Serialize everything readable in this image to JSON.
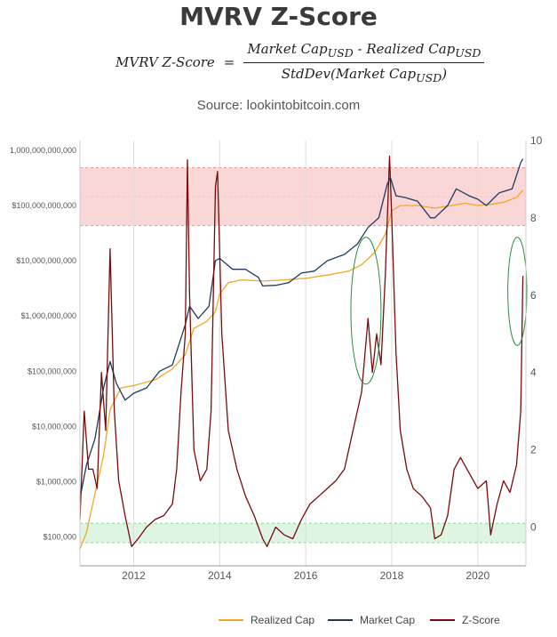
{
  "header": {
    "title": "MVRV Z-Score",
    "formula_lhs": "MVRV Z-Score",
    "formula_eq": "=",
    "formula_num": "Market Cap",
    "formula_num_sub": "USD",
    "formula_minus": " - Realized Cap",
    "formula_num_sub2": "USD",
    "formula_den": "StdDev(Market Cap",
    "formula_den_sub": "USD",
    "formula_den_close": ")",
    "source": "Source: lookintobitcoin.com"
  },
  "colors": {
    "realized_cap": "#f5a623",
    "market_cap": "#1f3a60",
    "z_score": "#7b0a0a",
    "red_band": "#f9d7d7",
    "green_band": "#dff5e4",
    "ellipse": "#2e8b3e"
  },
  "chart_data": {
    "type": "line",
    "title": "MVRV Z-Score",
    "xlabel": "",
    "ylabel": "",
    "y_scale": "log",
    "ylim": [
      30000,
      1500000000000
    ],
    "y2lim": [
      -1,
      10
    ],
    "xlim": [
      2010.75,
      2021.12
    ],
    "x_ticks": [
      "2012",
      "2014",
      "2016",
      "2018",
      "2020"
    ],
    "y_ticks": [
      "$100,000",
      "$1,000,000",
      "$10,000,000",
      "$100,000,000",
      "$1,000,000,000",
      "$10,000,000,000",
      "$100,000,000,000",
      "1,000,000,000,000"
    ],
    "y2_ticks": [
      "0",
      "2",
      "4",
      "6",
      "8",
      "10"
    ],
    "bands": [
      {
        "name": "red",
        "axis": "y2",
        "from": 7.8,
        "to": 9.3
      },
      {
        "name": "green",
        "axis": "y2",
        "from": -0.4,
        "to": 0.1
      }
    ],
    "grid": "vertical",
    "legend_position": "bottom",
    "series": [
      {
        "name": "Realized Cap",
        "axis": "y",
        "x": [
          2010.75,
          2010.9,
          2011.1,
          2011.3,
          2011.45,
          2011.7,
          2012.0,
          2012.5,
          2012.9,
          2013.2,
          2013.4,
          2013.7,
          2013.9,
          2014.0,
          2014.2,
          2014.5,
          2015.0,
          2015.5,
          2016.0,
          2016.5,
          2017.0,
          2017.3,
          2017.6,
          2017.85,
          2018.0,
          2018.2,
          2018.6,
          2019.0,
          2019.4,
          2019.7,
          2020.0,
          2020.3,
          2020.6,
          2020.9,
          2021.05
        ],
        "y": [
          60000,
          120000,
          600000,
          3000000,
          20000000,
          50000000,
          55000000,
          70000000,
          110000000,
          200000000,
          600000000,
          800000000,
          1200000000,
          2500000000,
          4000000000,
          4500000000,
          4300000000,
          4500000000,
          4800000000,
          5500000000,
          6500000000,
          8500000000,
          14000000000,
          30000000000,
          80000000000,
          100000000000,
          100000000000,
          90000000000,
          100000000000,
          110000000000,
          100000000000,
          105000000000,
          115000000000,
          140000000000,
          190000000000
        ]
      },
      {
        "name": "Market Cap",
        "axis": "y",
        "x": [
          2010.75,
          2010.9,
          2011.1,
          2011.3,
          2011.45,
          2011.6,
          2011.8,
          2012.0,
          2012.3,
          2012.6,
          2012.9,
          2013.2,
          2013.3,
          2013.5,
          2013.75,
          2013.9,
          2014.0,
          2014.3,
          2014.6,
          2014.9,
          2015.0,
          2015.3,
          2015.6,
          2015.9,
          2016.2,
          2016.5,
          2016.9,
          2017.2,
          2017.45,
          2017.7,
          2017.9,
          2017.97,
          2018.1,
          2018.3,
          2018.6,
          2018.9,
          2019.0,
          2019.3,
          2019.5,
          2019.8,
          2020.0,
          2020.2,
          2020.5,
          2020.8,
          2021.0,
          2021.05
        ],
        "y": [
          500000,
          2000000,
          6000000,
          50000000,
          150000000,
          60000000,
          30000000,
          40000000,
          50000000,
          100000000,
          130000000,
          700000000,
          1500000000,
          900000000,
          1500000000,
          10000000000,
          11000000000,
          7000000000,
          7000000000,
          5000000000,
          3500000000,
          3600000000,
          4000000000,
          6000000000,
          6500000000,
          10000000000,
          13000000000,
          20000000000,
          40000000000,
          60000000000,
          250000000000,
          320000000000,
          150000000000,
          140000000000,
          120000000000,
          60000000000,
          60000000000,
          100000000000,
          200000000000,
          150000000000,
          130000000000,
          100000000000,
          170000000000,
          200000000000,
          600000000000,
          700000000000
        ]
      },
      {
        "name": "Z-Score",
        "axis": "y2",
        "x": [
          2010.75,
          2010.85,
          2010.95,
          2011.05,
          2011.15,
          2011.25,
          2011.35,
          2011.45,
          2011.55,
          2011.65,
          2011.8,
          2011.95,
          2012.1,
          2012.3,
          2012.5,
          2012.7,
          2012.9,
          2013.0,
          2013.1,
          2013.2,
          2013.25,
          2013.3,
          2013.4,
          2013.55,
          2013.7,
          2013.8,
          2013.9,
          2013.95,
          2014.05,
          2014.2,
          2014.4,
          2014.6,
          2014.8,
          2015.0,
          2015.1,
          2015.3,
          2015.5,
          2015.7,
          2015.9,
          2016.1,
          2016.3,
          2016.5,
          2016.7,
          2016.9,
          2017.1,
          2017.3,
          2017.45,
          2017.55,
          2017.65,
          2017.75,
          2017.85,
          2017.95,
          2018.0,
          2018.1,
          2018.2,
          2018.35,
          2018.5,
          2018.7,
          2018.9,
          2019.0,
          2019.15,
          2019.3,
          2019.45,
          2019.6,
          2019.8,
          2020.0,
          2020.2,
          2020.3,
          2020.45,
          2020.6,
          2020.75,
          2020.9,
          2021.0,
          2021.05
        ],
        "y": [
          0.2,
          3.0,
          1.5,
          1.5,
          1.0,
          4.0,
          2.5,
          7.2,
          3.0,
          1.2,
          0.3,
          -0.5,
          -0.3,
          0.0,
          0.2,
          0.3,
          0.6,
          1.5,
          3.5,
          5.0,
          9.5,
          6.0,
          2.0,
          1.2,
          1.5,
          3.0,
          8.8,
          9.2,
          5.0,
          2.5,
          1.5,
          0.8,
          0.3,
          -0.3,
          -0.5,
          0.0,
          -0.2,
          -0.3,
          0.2,
          0.6,
          0.8,
          1.0,
          1.2,
          1.5,
          2.5,
          3.5,
          5.4,
          4.0,
          5.0,
          4.2,
          6.5,
          9.6,
          8.0,
          4.5,
          2.5,
          1.5,
          1.0,
          0.8,
          0.5,
          -0.3,
          -0.2,
          0.3,
          1.5,
          1.8,
          1.4,
          1.0,
          1.2,
          -0.2,
          0.6,
          1.2,
          0.9,
          1.6,
          3.0,
          6.5
        ]
      }
    ],
    "annotations": [
      {
        "shape": "ellipse",
        "x": 2017.4,
        "y2": 5.6,
        "rx_years": 0.35,
        "ry_units": 1.9
      },
      {
        "shape": "ellipse",
        "x": 2020.92,
        "y2": 6.1,
        "rx_years": 0.22,
        "ry_units": 1.4
      }
    ]
  },
  "legend": {
    "items": [
      "Realized Cap",
      "Market Cap",
      "Z-Score"
    ]
  }
}
